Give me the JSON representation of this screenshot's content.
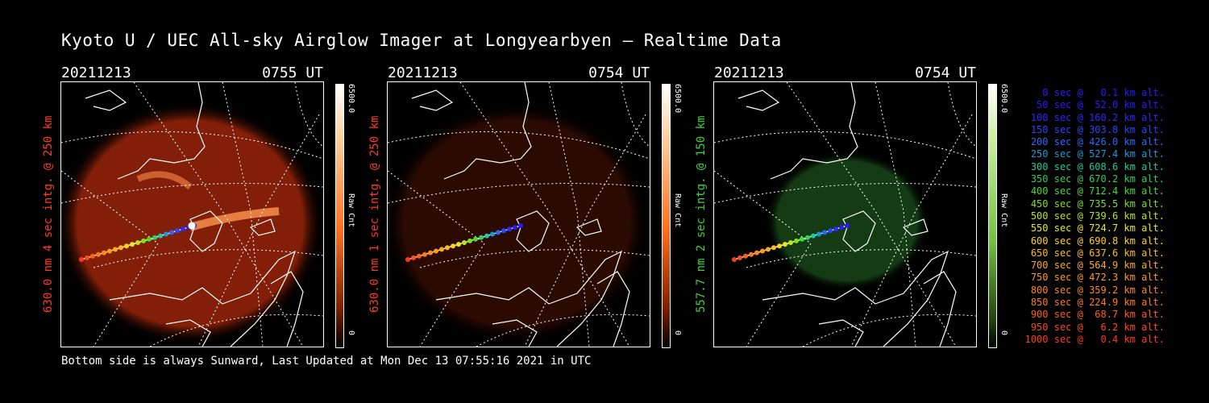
{
  "title": "Kyoto U / UEC All-sky Airglow Imager at Longyearbyen — Realtime Data",
  "footer": "Bottom side is always Sunward, Last Updated at Mon Dec 13 07:55:16 2021 in UTC",
  "panels": [
    {
      "date": "20211213",
      "time": "0755 UT",
      "label": "630.0 nm 4 sec intg. @ 250 km",
      "label_color": "#ff3b1f",
      "cbar_max": "6500.0",
      "cbar_unit": "Raw Cnt",
      "cbar_min": "0",
      "color_scale": "red",
      "brightness": 0.55
    },
    {
      "date": "20211213",
      "time": "0754 UT",
      "label": "630.0 nm 1 sec intg. @ 250 km",
      "label_color": "#ff3b1f",
      "cbar_max": "6500.0",
      "cbar_unit": "Raw Cnt",
      "cbar_min": "0",
      "color_scale": "red",
      "brightness": 0.18
    },
    {
      "date": "20211213",
      "time": "0754 UT",
      "label": "557.7 nm 2 sec intg. @ 150 km",
      "label_color": "#3fd23f",
      "cbar_max": "6500.0",
      "cbar_unit": "Raw Cnt",
      "cbar_min": "0",
      "color_scale": "green",
      "brightness": 0.35
    }
  ],
  "legend": [
    {
      "text": "0 sec @   0.1 km alt.",
      "color": "#2a1aff"
    },
    {
      "text": "50 sec @  52.0 km alt.",
      "color": "#2a1aff"
    },
    {
      "text": "100 sec @ 160.2 km alt.",
      "color": "#2a2aff"
    },
    {
      "text": "150 sec @ 303.8 km alt.",
      "color": "#2a46ff"
    },
    {
      "text": "200 sec @ 426.0 km alt.",
      "color": "#2a6aff"
    },
    {
      "text": "250 sec @ 527.4 km alt.",
      "color": "#1a9ad8"
    },
    {
      "text": "300 sec @ 608.6 km alt.",
      "color": "#1ec8a0"
    },
    {
      "text": "350 sec @ 670.2 km alt.",
      "color": "#30d060"
    },
    {
      "text": "400 sec @ 712.4 km alt.",
      "color": "#46dc2e"
    },
    {
      "text": "450 sec @ 735.5 km alt.",
      "color": "#7ee01e"
    },
    {
      "text": "500 sec @ 739.6 km alt.",
      "color": "#b8e61c"
    },
    {
      "text": "550 sec @ 724.7 km alt.",
      "color": "#e8e81c"
    },
    {
      "text": "600 sec @ 690.8 km alt.",
      "color": "#ffd21c"
    },
    {
      "text": "650 sec @ 637.6 km alt.",
      "color": "#ffbc1c"
    },
    {
      "text": "700 sec @ 564.9 km alt.",
      "color": "#ffaa1c"
    },
    {
      "text": "750 sec @ 472.3 km alt.",
      "color": "#ff9a1c"
    },
    {
      "text": "800 sec @ 359.2 km alt.",
      "color": "#ff8a1c"
    },
    {
      "text": "850 sec @ 224.9 km alt.",
      "color": "#ff7a1c"
    },
    {
      "text": "900 sec @  68.7 km alt.",
      "color": "#ff601c"
    },
    {
      "text": "950 sec @   6.2 km alt.",
      "color": "#ff4a1c"
    },
    {
      "text": "1000 sec @   0.4 km alt.",
      "color": "#ff3a1c"
    }
  ]
}
